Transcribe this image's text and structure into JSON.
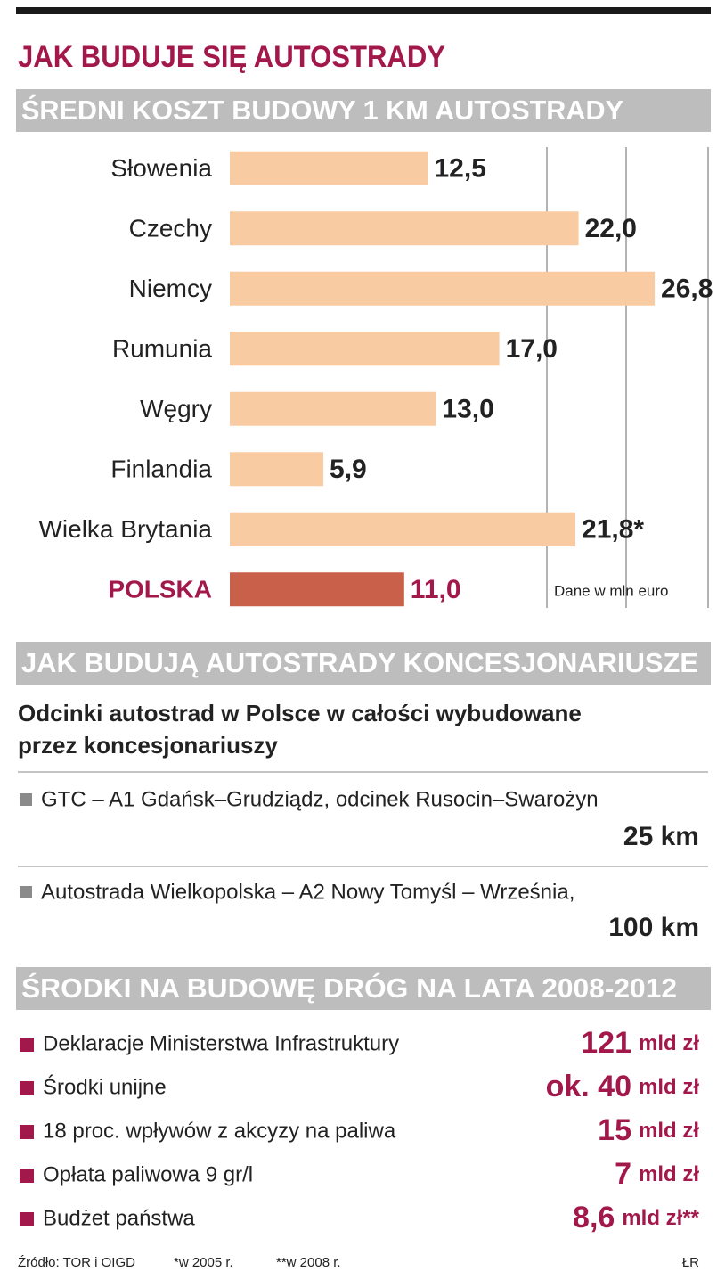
{
  "header": {
    "title": "JAK BUDUJE SIĘ AUTOSTRADY"
  },
  "chart_data": {
    "type": "bar",
    "orientation": "horizontal",
    "title": "ŚREDNI KOSZT BUDOWY 1 KM AUTOSTRADY",
    "categories": [
      "Słowenia",
      "Czechy",
      "Niemcy",
      "Rumunia",
      "Węgry",
      "Finlandia",
      "Wielka Brytania",
      "POLSKA"
    ],
    "values": [
      12.5,
      22.0,
      26.8,
      17.0,
      13.0,
      5.9,
      21.8,
      11.0
    ],
    "value_labels": [
      "12,5",
      "22,0",
      "26,8",
      "17,0",
      "13,0",
      "5,9",
      "21,8*",
      "11,0"
    ],
    "colors": [
      "#f9cba3",
      "#f9cba3",
      "#f9cba3",
      "#f9cba3",
      "#f9cba3",
      "#f9cba3",
      "#f9cba3",
      "#c9614a"
    ],
    "label_colors": [
      "#222222",
      "#222222",
      "#222222",
      "#222222",
      "#222222",
      "#222222",
      "#222222",
      "#a3184a"
    ],
    "xlim": [
      0,
      30
    ],
    "xticks": [
      20,
      25
    ],
    "grid": true,
    "note": "Dane w mln euro"
  },
  "concessions": {
    "title": "JAK BUDUJĄ AUTOSTRADY KONCESJONARIUSZE",
    "subtitle": [
      "Odcinki autostrad w Polsce w całości wybudowane",
      "przez koncesjonariuszy"
    ],
    "items": [
      {
        "text": "GTC – A1 Gdańsk–Grudziądz, odcinek Rusocin–Swarożyn",
        "length": "25 km"
      },
      {
        "text": "Autostrada Wielkopolska – A2  Nowy Tomyśl – Września,",
        "length": "100 km"
      }
    ]
  },
  "funds": {
    "title": "ŚRODKI NA BUDOWĘ DRÓG NA LATA 2008-2012",
    "items": [
      {
        "label": "Deklaracje Ministerstwa Infrastruktury",
        "amount": "121",
        "unit": "mld zł"
      },
      {
        "label": "Środki unijne",
        "amount": "ok. 40",
        "unit": "mld zł"
      },
      {
        "label": "18 proc. wpływów z akcyzy na paliwa",
        "amount": "15",
        "unit": "mld zł"
      },
      {
        "label": "Opłata paliwowa 9 gr/l",
        "amount": "7",
        "unit": "mld zł"
      },
      {
        "label": "Budżet państwa",
        "amount": "8,6",
        "unit": "mld zł**"
      }
    ]
  },
  "footer": {
    "source": "Źródło: TOR i OIGD",
    "note1": "*w 2005 r.",
    "note2": "**w 2008 r.",
    "author": "ŁR"
  }
}
